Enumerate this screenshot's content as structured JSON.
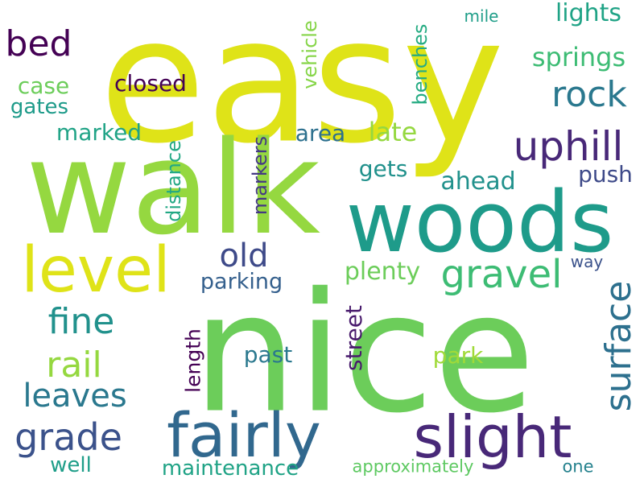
{
  "words": [
    {
      "text": "easy",
      "color": "#dfe318"
    },
    {
      "text": "walk",
      "color": "#95d840"
    },
    {
      "text": "nice",
      "color": "#6ccd5a"
    },
    {
      "text": "woods",
      "color": "#1e9b8a"
    },
    {
      "text": "fairly",
      "color": "#31688e"
    },
    {
      "text": "slight",
      "color": "#482878"
    },
    {
      "text": "level",
      "color": "#dfe318"
    },
    {
      "text": "uphill",
      "color": "#482878"
    },
    {
      "text": "gravel",
      "color": "#3dbc74"
    },
    {
      "text": "surface",
      "color": "#2d708e"
    },
    {
      "text": "rock",
      "color": "#2a788e"
    },
    {
      "text": "bed",
      "color": "#440154"
    },
    {
      "text": "fine",
      "color": "#21918c"
    },
    {
      "text": "rail",
      "color": "#95d840"
    },
    {
      "text": "leaves",
      "color": "#2a788e"
    },
    {
      "text": "grade",
      "color": "#3b528b"
    },
    {
      "text": "old",
      "color": "#3e4a89"
    },
    {
      "text": "springs",
      "color": "#3dbc74"
    },
    {
      "text": "lights",
      "color": "#20a386"
    },
    {
      "text": "plenty",
      "color": "#6ccd5a"
    },
    {
      "text": "parking",
      "color": "#35608d"
    },
    {
      "text": "marked",
      "color": "#20a386"
    },
    {
      "text": "closed",
      "color": "#440154"
    },
    {
      "text": "case",
      "color": "#6ccd5a"
    },
    {
      "text": "gates",
      "color": "#1e9b8a"
    },
    {
      "text": "late",
      "color": "#95d840"
    },
    {
      "text": "gets",
      "color": "#21918c"
    },
    {
      "text": "ahead",
      "color": "#21918c"
    },
    {
      "text": "push",
      "color": "#3e4a89"
    },
    {
      "text": "area",
      "color": "#2d708e"
    },
    {
      "text": "park",
      "color": "#a0da39"
    },
    {
      "text": "past",
      "color": "#2a788e"
    },
    {
      "text": "well",
      "color": "#1f9e89"
    },
    {
      "text": "maintenance",
      "color": "#20a386"
    },
    {
      "text": "approximately",
      "color": "#5ec962"
    },
    {
      "text": "one",
      "color": "#26828e"
    },
    {
      "text": "way",
      "color": "#3b528b"
    },
    {
      "text": "mile",
      "color": "#1f9e89"
    },
    {
      "text": "vehicle",
      "color": "#86d549"
    },
    {
      "text": "benches",
      "color": "#25ab82"
    },
    {
      "text": "distance",
      "color": "#22a884"
    },
    {
      "text": "markers",
      "color": "#443983"
    },
    {
      "text": "length",
      "color": "#440154"
    },
    {
      "text": "street",
      "color": "#481a6c"
    }
  ]
}
